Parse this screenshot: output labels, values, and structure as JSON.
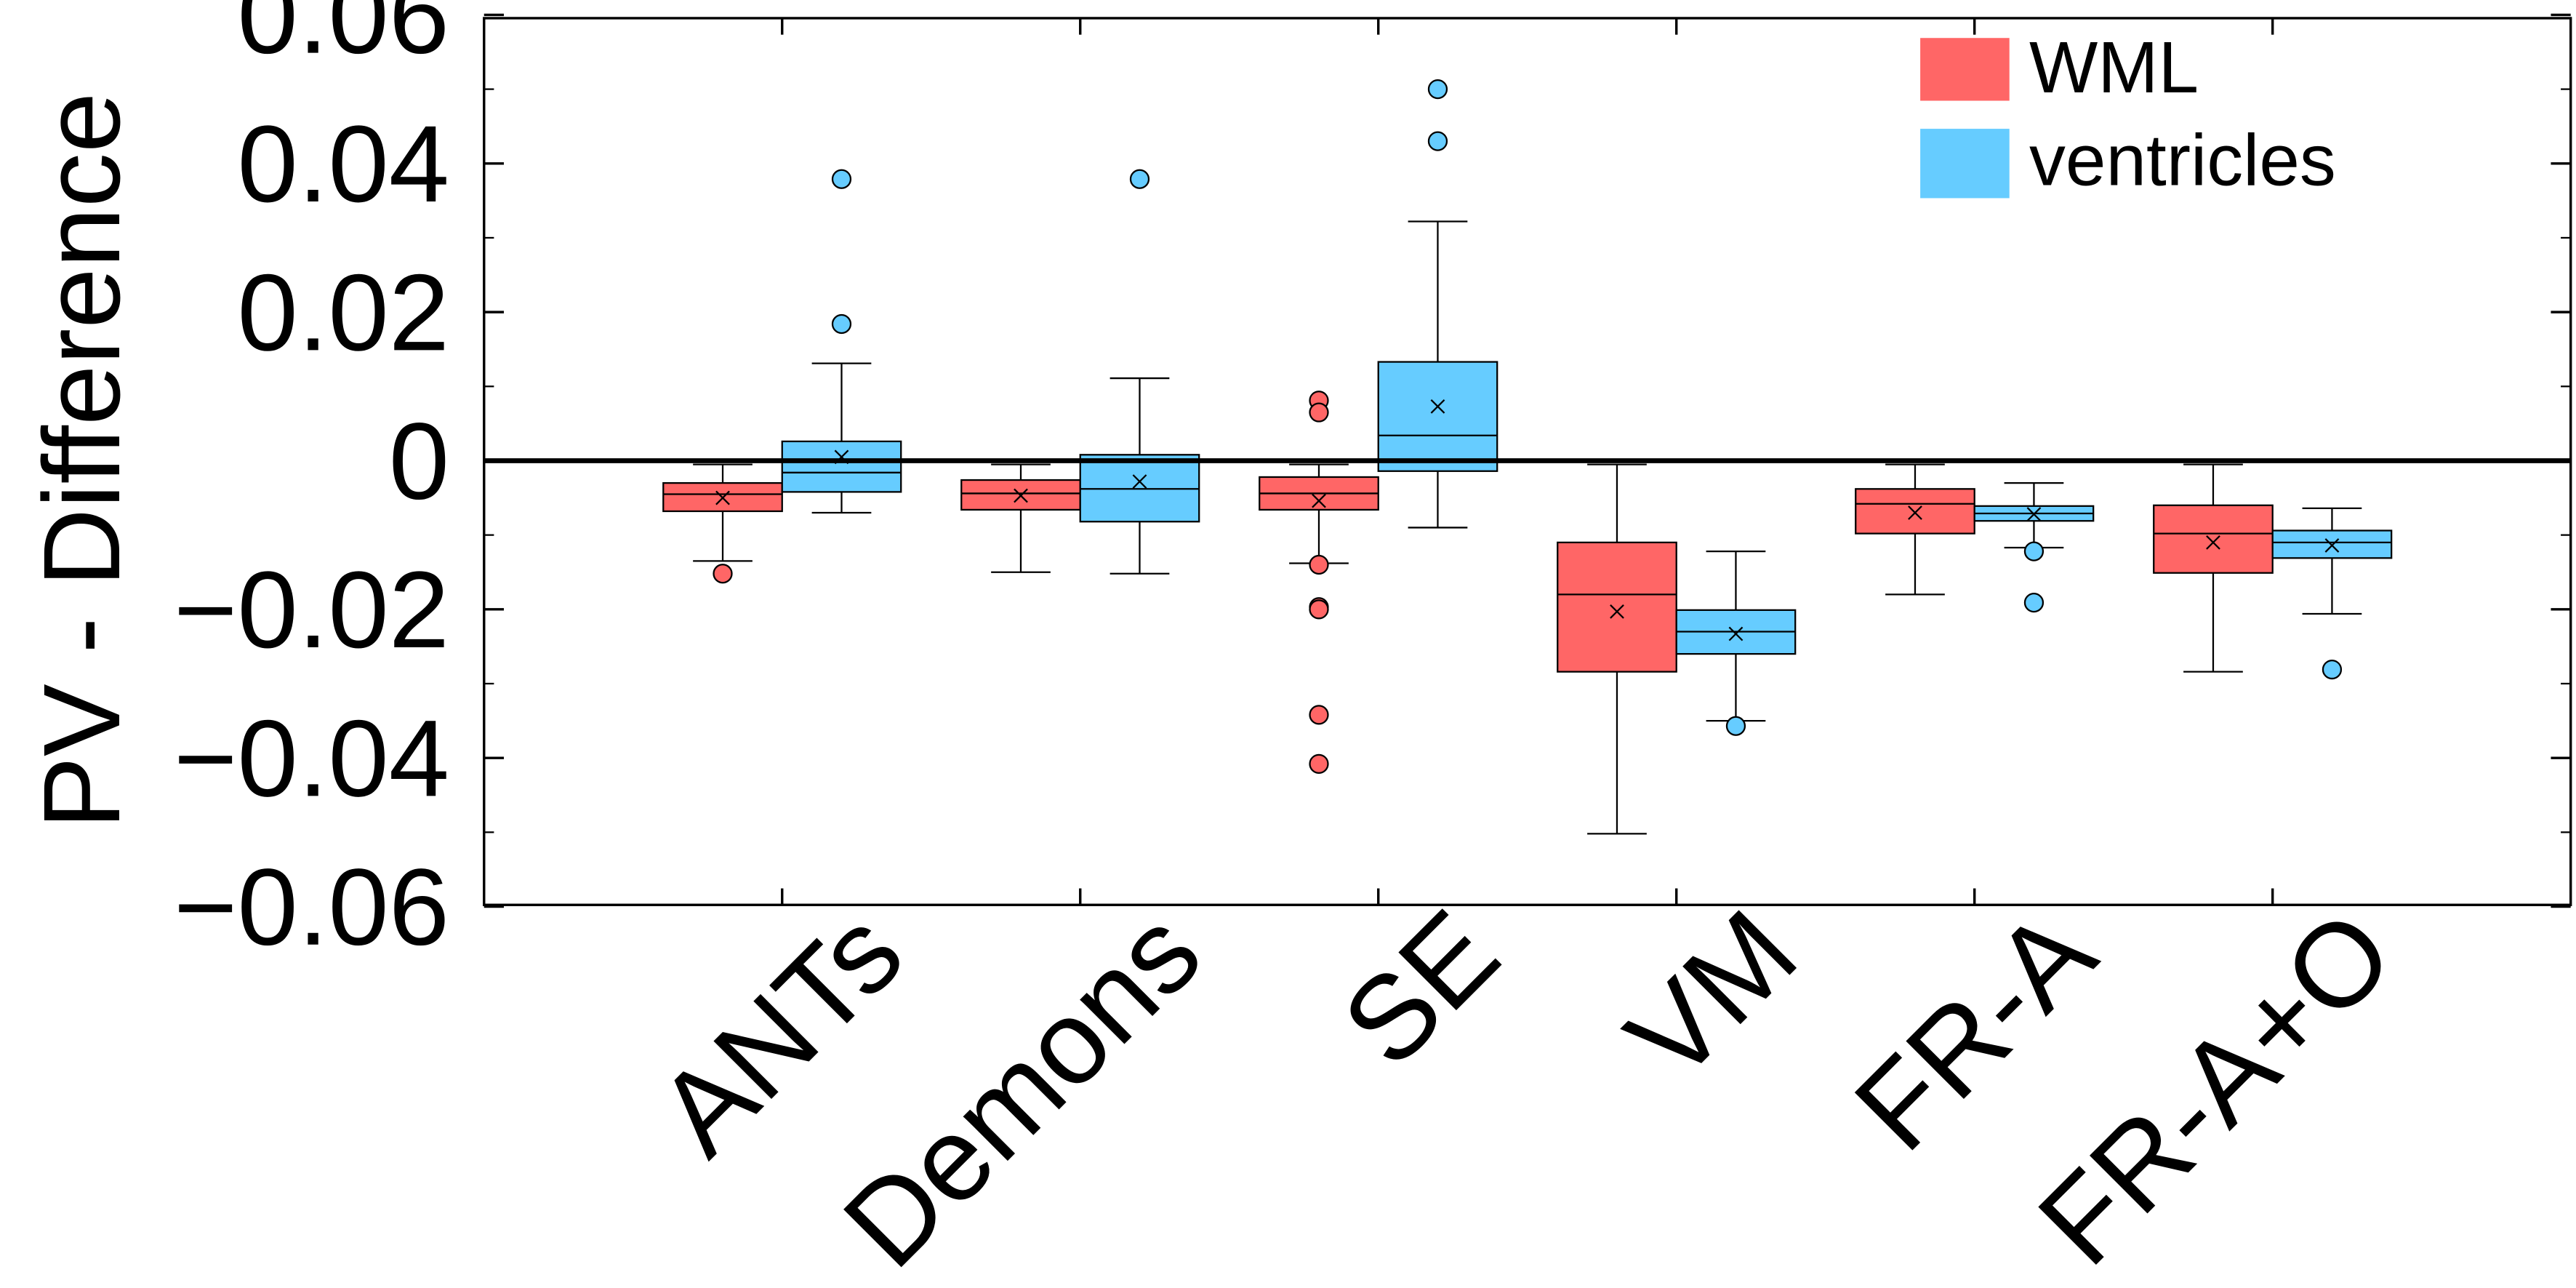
{
  "chart_data": {
    "type": "box",
    "ylabel": "PV - Difference",
    "ylim": [
      -0.06,
      0.06
    ],
    "yticks": [
      {
        "value": -0.06,
        "label": "−0.06"
      },
      {
        "value": -0.04,
        "label": "−0.04"
      },
      {
        "value": -0.02,
        "label": "−0.02"
      },
      {
        "value": 0,
        "label": "0"
      },
      {
        "value": 0.02,
        "label": "0.02"
      },
      {
        "value": 0.04,
        "label": "0.04"
      },
      {
        "value": 0.06,
        "label": "0.06"
      }
    ],
    "categories": [
      "ANTs",
      "Demons",
      "SE",
      "VM",
      "FR-A",
      "FR-A+O"
    ],
    "reference_line": 0,
    "legend": {
      "position": "top-right"
    },
    "series": [
      {
        "name": "WML",
        "color": "#FF6666",
        "boxes": [
          {
            "whisker_low": -0.0135,
            "q1": -0.0068,
            "median": -0.0045,
            "q3": -0.003,
            "whisker_high": -0.0005,
            "mean": -0.005,
            "outliers": [
              -0.0152
            ]
          },
          {
            "whisker_low": -0.015,
            "q1": -0.0066,
            "median": -0.0044,
            "q3": -0.0026,
            "whisker_high": -0.0005,
            "mean": -0.0047,
            "outliers": []
          },
          {
            "whisker_low": -0.0138,
            "q1": -0.0066,
            "median": -0.0044,
            "q3": -0.0022,
            "whisker_high": -0.0005,
            "mean": -0.0054,
            "outliers": [
              0.0081,
              0.0065,
              -0.014,
              -0.0197,
              -0.02,
              -0.0342,
              -0.0408
            ]
          },
          {
            "whisker_low": -0.0502,
            "q1": -0.0284,
            "median": -0.018,
            "q3": -0.011,
            "whisker_high": -0.0005,
            "mean": -0.0203,
            "outliers": []
          },
          {
            "whisker_low": -0.018,
            "q1": -0.0098,
            "median": -0.0058,
            "q3": -0.0038,
            "whisker_high": -0.0005,
            "mean": -0.007,
            "outliers": []
          },
          {
            "whisker_low": -0.0284,
            "q1": -0.0151,
            "median": -0.0098,
            "q3": -0.006,
            "whisker_high": -0.0005,
            "mean": -0.011,
            "outliers": []
          }
        ]
      },
      {
        "name": "ventricles",
        "color": "#66CCFF",
        "boxes": [
          {
            "whisker_low": -0.007,
            "q1": -0.0042,
            "median": -0.0016,
            "q3": 0.0026,
            "whisker_high": 0.0131,
            "mean": 0.0005,
            "outliers": [
              0.0379,
              0.0184
            ]
          },
          {
            "whisker_low": -0.0152,
            "q1": -0.0082,
            "median": -0.0038,
            "q3": 0.0008,
            "whisker_high": 0.0111,
            "mean": -0.0028,
            "outliers": [
              0.0379
            ]
          },
          {
            "whisker_low": -0.009,
            "q1": -0.0014,
            "median": 0.0034,
            "q3": 0.0133,
            "whisker_high": 0.0322,
            "mean": 0.0073,
            "outliers": [
              0.05,
              0.043
            ]
          },
          {
            "whisker_low": -0.035,
            "q1": -0.026,
            "median": -0.023,
            "q3": -0.0201,
            "whisker_high": -0.0122,
            "mean": -0.0233,
            "outliers": [
              -0.0357
            ]
          },
          {
            "whisker_low": -0.0117,
            "q1": -0.0081,
            "median": -0.0071,
            "q3": -0.0061,
            "whisker_high": -0.003,
            "mean": -0.0072,
            "outliers": [
              -0.0122,
              -0.0191
            ]
          },
          {
            "whisker_low": -0.0206,
            "q1": -0.0131,
            "median": -0.011,
            "q3": -0.0094,
            "whisker_high": -0.0064,
            "mean": -0.0114,
            "outliers": [
              -0.0281
            ]
          }
        ]
      }
    ]
  }
}
